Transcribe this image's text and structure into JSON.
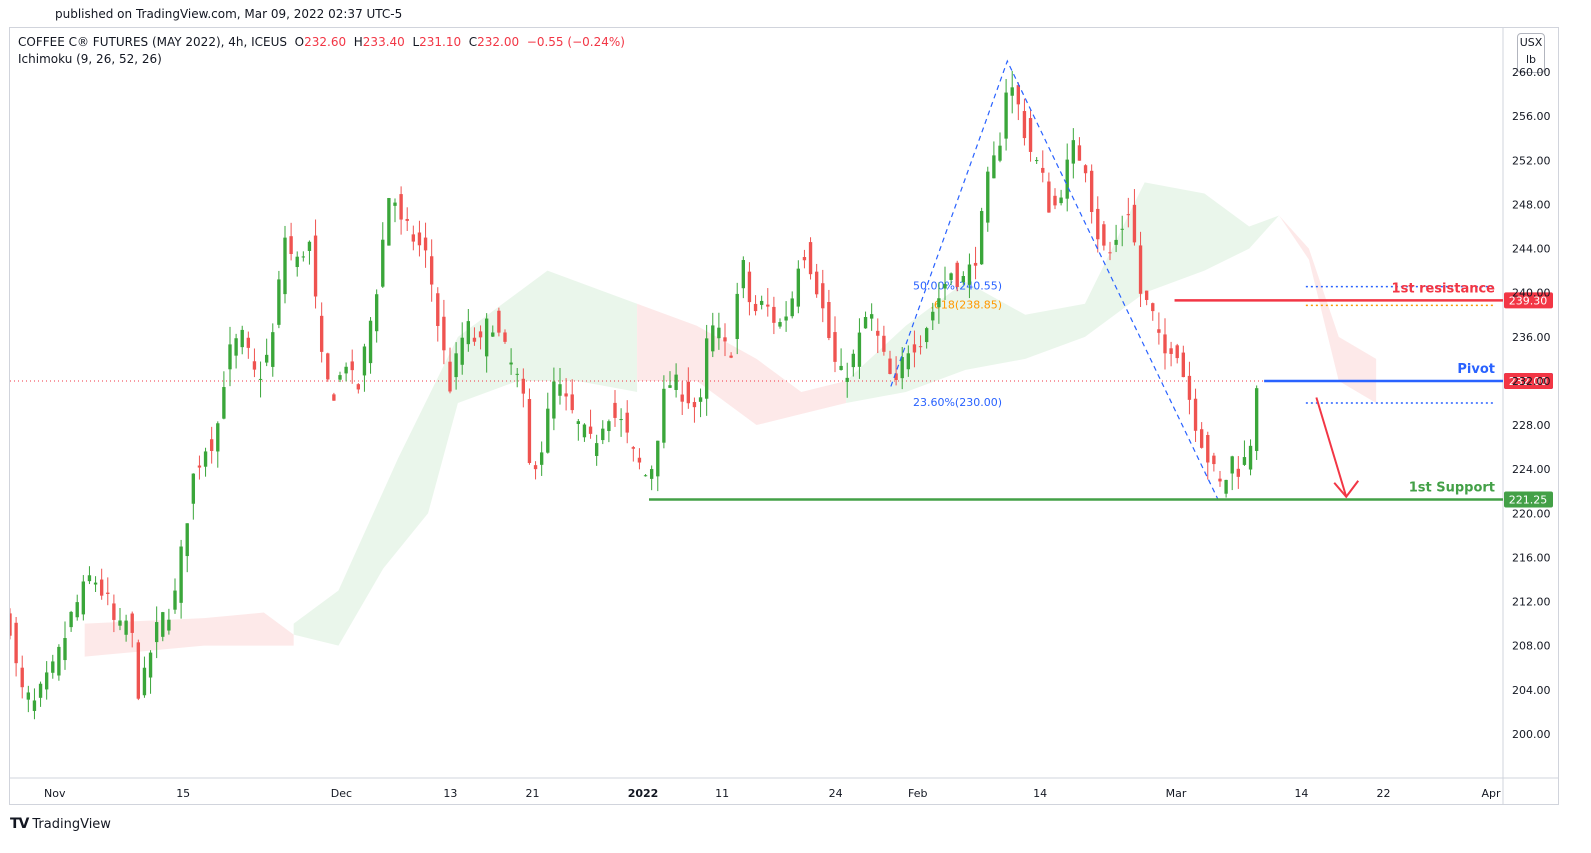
{
  "header": {
    "published": "published on TradingView.com, Mar 09, 2022 02:37 UTC-5"
  },
  "legend": {
    "symbol": "COFFEE C® FUTURES (MAY 2022), 4h, ICEUS",
    "o_label": "O",
    "o": "232.60",
    "h_label": "H",
    "h": "233.40",
    "l_label": "L",
    "l": "231.10",
    "c_label": "C",
    "c": "232.00",
    "change": "−0.55 (−0.24%)",
    "indicator": "Ichimoku (9, 26, 52, 26)"
  },
  "unit_selector": {
    "currency": "USX",
    "unit": "lb"
  },
  "brand": {
    "logo": "TV",
    "name": "TradingView"
  },
  "colors": {
    "up": "#26a69a",
    "up_candle": "#3aa63a",
    "down": "#ef5350",
    "cloud_bull": "#e8f5e9",
    "cloud_bear": "#fde7e7",
    "fib": "#2962ff",
    "fib_gold": "#ff9800",
    "resistance": "#f23645",
    "pivot": "#2962ff",
    "support": "#43a047"
  },
  "chart_data": {
    "type": "candlestick",
    "symbol": "COFFEE C® FUTURES (MAY 2022)",
    "timeframe": "4h",
    "y_ticks": [
      "260.00",
      "256.00",
      "252.00",
      "248.00",
      "244.00",
      "240.00",
      "236.00",
      "232.00",
      "228.00",
      "224.00",
      "220.00",
      "216.00",
      "212.00",
      "208.00",
      "204.00",
      "200.00"
    ],
    "ylim": [
      196,
      264
    ],
    "x_ticks": [
      {
        "label": "Nov",
        "bold": false,
        "t": 0.03
      },
      {
        "label": "15",
        "bold": false,
        "t": 0.116
      },
      {
        "label": "Dec",
        "bold": false,
        "t": 0.222
      },
      {
        "label": "13",
        "bold": false,
        "t": 0.295
      },
      {
        "label": "21",
        "bold": false,
        "t": 0.35
      },
      {
        "label": "2022",
        "bold": true,
        "t": 0.424
      },
      {
        "label": "11",
        "bold": false,
        "t": 0.477
      },
      {
        "label": "24",
        "bold": false,
        "t": 0.553
      },
      {
        "label": "Feb",
        "bold": false,
        "t": 0.608
      },
      {
        "label": "14",
        "bold": false,
        "t": 0.69
      },
      {
        "label": "Mar",
        "bold": false,
        "t": 0.781
      },
      {
        "label": "14",
        "bold": false,
        "t": 0.865
      },
      {
        "label": "22",
        "bold": false,
        "t": 0.92
      },
      {
        "label": "Apr",
        "bold": false,
        "t": 0.992
      }
    ],
    "candle_path": [
      {
        "t": 0.0,
        "p": 210
      },
      {
        "t": 0.006,
        "p": 204
      },
      {
        "t": 0.016,
        "p": 202.5
      },
      {
        "t": 0.03,
        "p": 206
      },
      {
        "t": 0.042,
        "p": 211
      },
      {
        "t": 0.055,
        "p": 214.5
      },
      {
        "t": 0.065,
        "p": 212
      },
      {
        "t": 0.072,
        "p": 209
      },
      {
        "t": 0.08,
        "p": 210.5
      },
      {
        "t": 0.087,
        "p": 203
      },
      {
        "t": 0.095,
        "p": 208
      },
      {
        "t": 0.1,
        "p": 210
      },
      {
        "t": 0.11,
        "p": 212
      },
      {
        "t": 0.115,
        "p": 216.5
      },
      {
        "t": 0.122,
        "p": 223
      },
      {
        "t": 0.13,
        "p": 226
      },
      {
        "t": 0.138,
        "p": 227
      },
      {
        "t": 0.145,
        "p": 234
      },
      {
        "t": 0.155,
        "p": 236
      },
      {
        "t": 0.165,
        "p": 232
      },
      {
        "t": 0.175,
        "p": 235
      },
      {
        "t": 0.185,
        "p": 246
      },
      {
        "t": 0.19,
        "p": 242
      },
      {
        "t": 0.2,
        "p": 245
      },
      {
        "t": 0.21,
        "p": 232
      },
      {
        "t": 0.218,
        "p": 231
      },
      {
        "t": 0.225,
        "p": 234
      },
      {
        "t": 0.232,
        "p": 230.5
      },
      {
        "t": 0.245,
        "p": 240
      },
      {
        "t": 0.255,
        "p": 250
      },
      {
        "t": 0.262,
        "p": 246
      },
      {
        "t": 0.27,
        "p": 245
      },
      {
        "t": 0.28,
        "p": 243
      },
      {
        "t": 0.288,
        "p": 236
      },
      {
        "t": 0.295,
        "p": 231.5
      },
      {
        "t": 0.305,
        "p": 237
      },
      {
        "t": 0.315,
        "p": 235
      },
      {
        "t": 0.322,
        "p": 238
      },
      {
        "t": 0.33,
        "p": 235
      },
      {
        "t": 0.337,
        "p": 233
      },
      {
        "t": 0.343,
        "p": 231
      },
      {
        "t": 0.348,
        "p": 224
      },
      {
        "t": 0.356,
        "p": 226
      },
      {
        "t": 0.365,
        "p": 232
      },
      {
        "t": 0.372,
        "p": 230
      },
      {
        "t": 0.38,
        "p": 228
      },
      {
        "t": 0.39,
        "p": 226
      },
      {
        "t": 0.4,
        "p": 229.5
      },
      {
        "t": 0.41,
        "p": 228
      },
      {
        "t": 0.418,
        "p": 225
      },
      {
        "t": 0.428,
        "p": 223
      },
      {
        "t": 0.44,
        "p": 232
      },
      {
        "t": 0.452,
        "p": 231
      },
      {
        "t": 0.462,
        "p": 229
      },
      {
        "t": 0.468,
        "p": 237
      },
      {
        "t": 0.475,
        "p": 236
      },
      {
        "t": 0.482,
        "p": 234
      },
      {
        "t": 0.49,
        "p": 243
      },
      {
        "t": 0.497,
        "p": 238
      },
      {
        "t": 0.505,
        "p": 239
      },
      {
        "t": 0.515,
        "p": 237
      },
      {
        "t": 0.523,
        "p": 239
      },
      {
        "t": 0.53,
        "p": 244.5
      },
      {
        "t": 0.538,
        "p": 242
      },
      {
        "t": 0.545,
        "p": 238
      },
      {
        "t": 0.555,
        "p": 232
      },
      {
        "t": 0.565,
        "p": 234
      },
      {
        "t": 0.575,
        "p": 238.5
      },
      {
        "t": 0.585,
        "p": 234
      },
      {
        "t": 0.593,
        "p": 231
      },
      {
        "t": 0.6,
        "p": 235
      },
      {
        "t": 0.61,
        "p": 236
      },
      {
        "t": 0.62,
        "p": 239
      },
      {
        "t": 0.63,
        "p": 242
      },
      {
        "t": 0.64,
        "p": 241
      },
      {
        "t": 0.648,
        "p": 244
      },
      {
        "t": 0.655,
        "p": 250
      },
      {
        "t": 0.662,
        "p": 253
      },
      {
        "t": 0.668,
        "p": 259.5
      },
      {
        "t": 0.675,
        "p": 257
      },
      {
        "t": 0.683,
        "p": 253
      },
      {
        "t": 0.69,
        "p": 251
      },
      {
        "t": 0.698,
        "p": 247
      },
      {
        "t": 0.705,
        "p": 250
      },
      {
        "t": 0.712,
        "p": 253
      },
      {
        "t": 0.72,
        "p": 252
      },
      {
        "t": 0.727,
        "p": 246
      },
      {
        "t": 0.735,
        "p": 243
      },
      {
        "t": 0.742,
        "p": 245
      },
      {
        "t": 0.75,
        "p": 248
      },
      {
        "t": 0.757,
        "p": 240
      },
      {
        "t": 0.765,
        "p": 238
      },
      {
        "t": 0.772,
        "p": 234
      },
      {
        "t": 0.78,
        "p": 236
      },
      {
        "t": 0.787,
        "p": 232
      },
      {
        "t": 0.795,
        "p": 228
      },
      {
        "t": 0.805,
        "p": 224
      },
      {
        "t": 0.812,
        "p": 222
      },
      {
        "t": 0.818,
        "p": 225
      },
      {
        "t": 0.824,
        "p": 224
      },
      {
        "t": 0.83,
        "p": 225.5
      },
      {
        "t": 0.835,
        "p": 232
      }
    ],
    "cloud_segments": [
      {
        "kind": "bear",
        "pts": [
          [
            0.05,
            210
          ],
          [
            0.13,
            210.5
          ],
          [
            0.17,
            211
          ],
          [
            0.19,
            209
          ]
        ],
        "bottom": [
          [
            0.05,
            207
          ],
          [
            0.13,
            208
          ],
          [
            0.17,
            208
          ],
          [
            0.19,
            208
          ]
        ]
      },
      {
        "kind": "bull",
        "pts": [
          [
            0.19,
            210
          ],
          [
            0.22,
            213
          ],
          [
            0.26,
            225
          ],
          [
            0.3,
            236
          ],
          [
            0.34,
            240
          ],
          [
            0.36,
            242
          ],
          [
            0.4,
            240
          ],
          [
            0.42,
            239
          ]
        ],
        "bottom": [
          [
            0.19,
            209
          ],
          [
            0.22,
            208
          ],
          [
            0.25,
            215
          ],
          [
            0.28,
            220
          ],
          [
            0.3,
            230
          ],
          [
            0.34,
            232
          ],
          [
            0.38,
            232
          ],
          [
            0.42,
            231
          ]
        ]
      },
      {
        "kind": "bear",
        "pts": [
          [
            0.42,
            239
          ],
          [
            0.46,
            237
          ],
          [
            0.5,
            234
          ],
          [
            0.53,
            231
          ],
          [
            0.56,
            232
          ]
        ],
        "bottom": [
          [
            0.42,
            232
          ],
          [
            0.46,
            232
          ],
          [
            0.5,
            228
          ],
          [
            0.53,
            229
          ],
          [
            0.56,
            230
          ]
        ]
      },
      {
        "kind": "bull",
        "pts": [
          [
            0.56,
            232
          ],
          [
            0.6,
            237
          ],
          [
            0.64,
            241
          ],
          [
            0.68,
            238
          ],
          [
            0.72,
            239
          ],
          [
            0.76,
            250
          ],
          [
            0.8,
            249
          ],
          [
            0.83,
            246
          ],
          [
            0.85,
            247
          ]
        ],
        "bottom": [
          [
            0.56,
            230
          ],
          [
            0.6,
            231
          ],
          [
            0.64,
            233
          ],
          [
            0.68,
            234
          ],
          [
            0.72,
            236
          ],
          [
            0.76,
            240
          ],
          [
            0.8,
            242
          ],
          [
            0.83,
            244
          ],
          [
            0.85,
            247
          ]
        ]
      },
      {
        "kind": "bear",
        "pts": [
          [
            0.85,
            247
          ],
          [
            0.87,
            244
          ],
          [
            0.89,
            236
          ],
          [
            0.915,
            234
          ]
        ],
        "bottom": [
          [
            0.85,
            247
          ],
          [
            0.87,
            243
          ],
          [
            0.89,
            232
          ],
          [
            0.915,
            230
          ]
        ]
      }
    ],
    "zigzag": [
      [
        0.59,
        231.5
      ],
      [
        0.668,
        261
      ],
      [
        0.81,
        221
      ]
    ],
    "fib_levels": [
      {
        "label": "50.00%(240.55)",
        "value": 240.55,
        "t0": 0.59,
        "t1": 0.995,
        "color": "#2962ff"
      },
      {
        "label": ".618(238.85)",
        "value": 238.85,
        "t0": 0.59,
        "t1": 0.995,
        "color": "#ff9800"
      },
      {
        "label": "23.60%(230.00)",
        "value": 230.0,
        "t0": 0.59,
        "t1": 0.995,
        "color": "#2962ff"
      }
    ],
    "levels": [
      {
        "name": "1st resistance",
        "value": 239.3,
        "price_label": "239.30",
        "t0": 0.78,
        "color": "#f23645"
      },
      {
        "name": "Pivot",
        "value": 232.0,
        "price_label": "232.00",
        "t0": 0.84,
        "color": "#2962ff"
      },
      {
        "name": "1st Support",
        "value": 221.25,
        "price_label": "221.25",
        "t0": 0.428,
        "color": "#43a047"
      }
    ],
    "last_price": {
      "value": 232.0,
      "label": "232.00",
      "color": "#f23645"
    },
    "arrow": {
      "from": [
        0.875,
        230.5
      ],
      "to": [
        0.895,
        221.5
      ],
      "color": "#f23645"
    }
  }
}
